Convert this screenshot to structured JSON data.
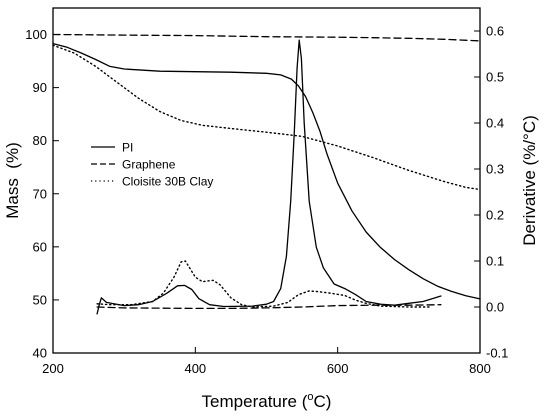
{
  "chart_data": {
    "type": "line",
    "xlabel": "Temperature (°C)",
    "xlabel_parts": {
      "main": "Temperature (",
      "degree": "o",
      "unit": "C)"
    },
    "ylabel_left": "Mass  (%)",
    "ylabel_right": "Derivative (%/°C)",
    "xlim": [
      200,
      800
    ],
    "ylim_left": [
      40,
      105
    ],
    "ylim_right": [
      -0.1,
      0.65
    ],
    "x_ticks": [
      200,
      400,
      600,
      800
    ],
    "y_left_ticks": [
      40,
      50,
      60,
      70,
      80,
      90,
      100
    ],
    "y_right_ticks": [
      -0.1,
      0.0,
      0.1,
      0.2,
      0.3,
      0.4,
      0.5,
      0.6
    ],
    "y_right_tick_labels": [
      "-0.1",
      "0.0",
      "0.1",
      "0.2",
      "0.3",
      "0.4",
      "0.5",
      "0.6"
    ],
    "legend_position": "center-left",
    "series": [
      {
        "name": "PI",
        "kind": "mass",
        "axis": "left",
        "style": "solid",
        "points": [
          [
            200,
            98.3
          ],
          [
            220,
            97.6
          ],
          [
            240,
            96.5
          ],
          [
            260,
            95.3
          ],
          [
            280,
            94.0
          ],
          [
            300,
            93.5
          ],
          [
            350,
            93.1
          ],
          [
            400,
            93.0
          ],
          [
            450,
            92.9
          ],
          [
            500,
            92.7
          ],
          [
            520,
            92.4
          ],
          [
            535,
            91.6
          ],
          [
            545,
            90.3
          ],
          [
            555,
            88.3
          ],
          [
            565,
            85.3
          ],
          [
            575,
            81.8
          ],
          [
            585,
            77.5
          ],
          [
            600,
            72.0
          ],
          [
            620,
            66.8
          ],
          [
            640,
            62.8
          ],
          [
            660,
            59.9
          ],
          [
            680,
            57.6
          ],
          [
            700,
            55.7
          ],
          [
            720,
            54.0
          ],
          [
            740,
            52.6
          ],
          [
            760,
            51.6
          ],
          [
            780,
            50.8
          ],
          [
            800,
            50.2
          ]
        ]
      },
      {
        "name": "Graphene",
        "kind": "mass",
        "axis": "left",
        "style": "dashed",
        "points": [
          [
            200,
            100.0
          ],
          [
            300,
            99.9
          ],
          [
            400,
            99.8
          ],
          [
            500,
            99.6
          ],
          [
            600,
            99.5
          ],
          [
            650,
            99.4
          ],
          [
            700,
            99.3
          ],
          [
            750,
            99.1
          ],
          [
            800,
            98.8
          ]
        ]
      },
      {
        "name": "Cloisite 30B Clay",
        "kind": "mass",
        "axis": "left",
        "style": "dotted",
        "points": [
          [
            200,
            98.0
          ],
          [
            230,
            96.5
          ],
          [
            260,
            94.0
          ],
          [
            290,
            91.0
          ],
          [
            320,
            88.0
          ],
          [
            350,
            85.5
          ],
          [
            380,
            83.8
          ],
          [
            410,
            82.9
          ],
          [
            450,
            82.3
          ],
          [
            500,
            81.6
          ],
          [
            550,
            80.8
          ],
          [
            600,
            79.0
          ],
          [
            650,
            76.8
          ],
          [
            700,
            74.4
          ],
          [
            750,
            72.3
          ],
          [
            780,
            71.2
          ],
          [
            800,
            70.8
          ]
        ]
      },
      {
        "name": "PI",
        "kind": "derivative",
        "axis": "right",
        "style": "solid",
        "points": [
          [
            262,
            -0.015
          ],
          [
            265,
            0.005
          ],
          [
            268,
            0.02
          ],
          [
            275,
            0.01
          ],
          [
            300,
            0.003
          ],
          [
            320,
            0.005
          ],
          [
            340,
            0.012
          ],
          [
            360,
            0.03
          ],
          [
            375,
            0.046
          ],
          [
            385,
            0.047
          ],
          [
            395,
            0.038
          ],
          [
            405,
            0.018
          ],
          [
            420,
            0.005
          ],
          [
            440,
            0.001
          ],
          [
            480,
            0.002
          ],
          [
            500,
            0.006
          ],
          [
            510,
            0.012
          ],
          [
            520,
            0.04
          ],
          [
            528,
            0.11
          ],
          [
            534,
            0.23
          ],
          [
            539,
            0.38
          ],
          [
            543,
            0.52
          ],
          [
            546,
            0.58
          ],
          [
            549,
            0.54
          ],
          [
            553,
            0.4
          ],
          [
            560,
            0.23
          ],
          [
            570,
            0.13
          ],
          [
            580,
            0.085
          ],
          [
            595,
            0.05
          ],
          [
            610,
            0.04
          ],
          [
            625,
            0.027
          ],
          [
            640,
            0.012
          ],
          [
            660,
            0.006
          ],
          [
            680,
            0.004
          ],
          [
            700,
            0.008
          ],
          [
            720,
            0.012
          ],
          [
            735,
            0.019
          ],
          [
            745,
            0.024
          ]
        ]
      },
      {
        "name": "Graphene",
        "kind": "derivative",
        "axis": "right",
        "style": "dashed",
        "points": [
          [
            262,
            0.0
          ],
          [
            300,
            -0.002
          ],
          [
            400,
            -0.003
          ],
          [
            450,
            -0.003
          ],
          [
            500,
            -0.002
          ],
          [
            550,
            0.0
          ],
          [
            600,
            0.003
          ],
          [
            650,
            0.004
          ],
          [
            700,
            0.004
          ],
          [
            745,
            0.005
          ]
        ]
      },
      {
        "name": "Cloisite 30B Clay",
        "kind": "derivative",
        "axis": "right",
        "style": "dotted",
        "points": [
          [
            262,
            0.007
          ],
          [
            280,
            0.005
          ],
          [
            310,
            0.005
          ],
          [
            340,
            0.012
          ],
          [
            355,
            0.03
          ],
          [
            370,
            0.065
          ],
          [
            380,
            0.098
          ],
          [
            386,
            0.1
          ],
          [
            392,
            0.085
          ],
          [
            400,
            0.065
          ],
          [
            410,
            0.055
          ],
          [
            425,
            0.058
          ],
          [
            435,
            0.048
          ],
          [
            450,
            0.02
          ],
          [
            465,
            0.005
          ],
          [
            480,
            0.0
          ],
          [
            510,
            0.002
          ],
          [
            530,
            0.01
          ],
          [
            545,
            0.027
          ],
          [
            560,
            0.035
          ],
          [
            575,
            0.033
          ],
          [
            590,
            0.03
          ],
          [
            610,
            0.025
          ],
          [
            625,
            0.015
          ],
          [
            640,
            0.008
          ],
          [
            660,
            0.002
          ],
          [
            700,
            0.0
          ],
          [
            730,
            0.0
          ]
        ]
      }
    ],
    "legend": [
      {
        "label": "PI",
        "style": "solid"
      },
      {
        "label": "Graphene",
        "style": "dashed"
      },
      {
        "label": "Cloisite 30B Clay",
        "style": "dotted"
      }
    ]
  }
}
